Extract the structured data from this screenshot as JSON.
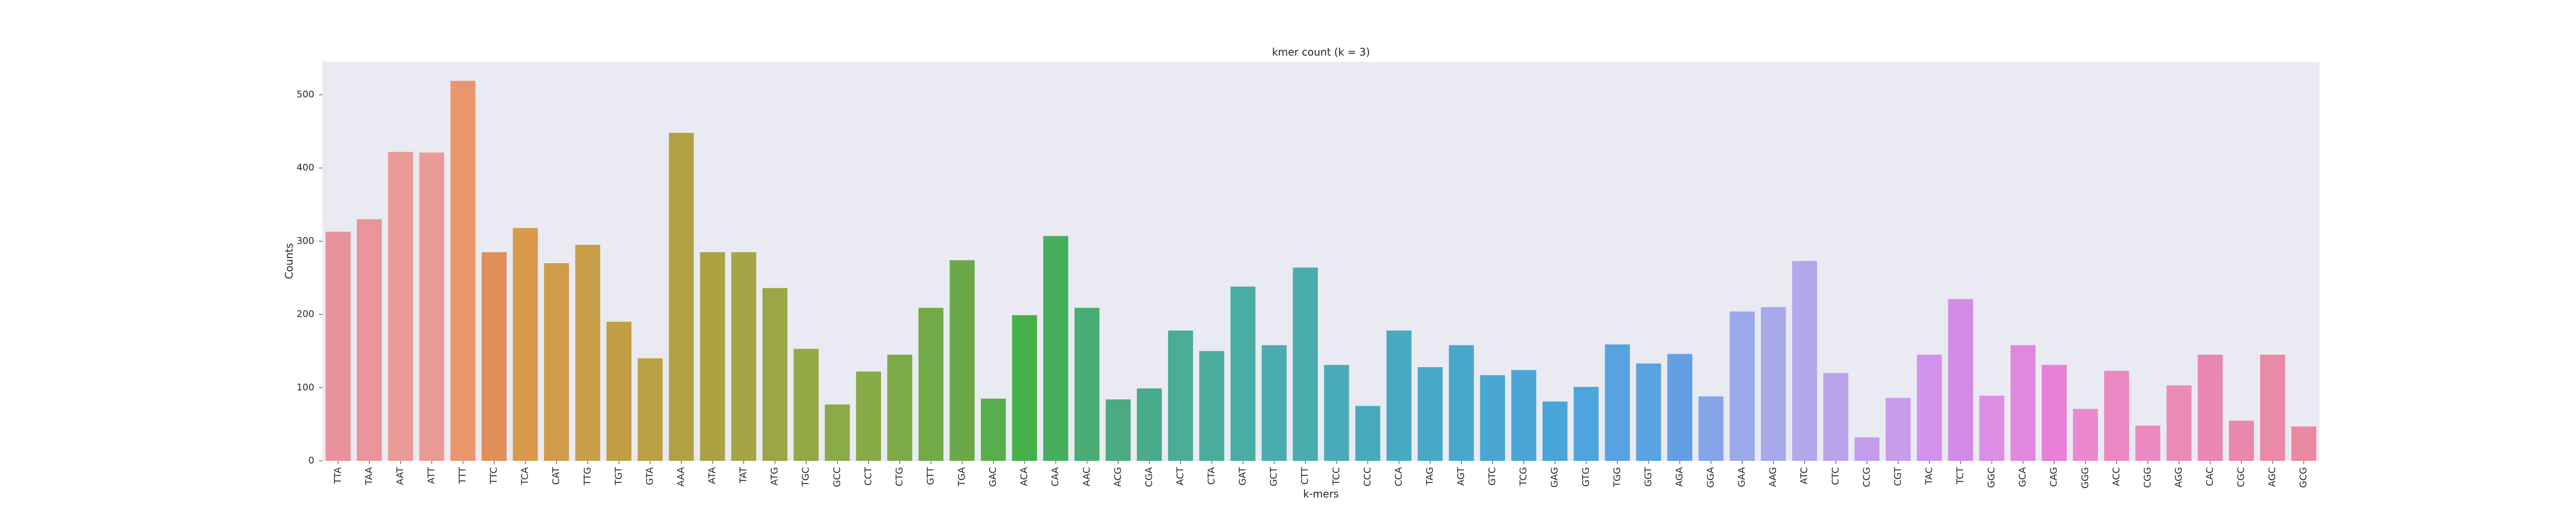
{
  "chart_data": {
    "type": "bar",
    "title": "kmer count (k = 3)",
    "xlabel": "k-mers",
    "ylabel": "Counts",
    "ylim": [
      0,
      545
    ],
    "yticks": [
      0,
      100,
      200,
      300,
      400,
      500
    ],
    "grid": false,
    "background": "#eaeaf2",
    "categories": [
      "TTA",
      "TAA",
      "AAT",
      "ATT",
      "TTT",
      "TTC",
      "TCA",
      "CAT",
      "TTG",
      "TGT",
      "GTA",
      "AAA",
      "ATA",
      "TAT",
      "ATG",
      "TGC",
      "GCC",
      "CCT",
      "CTG",
      "GTT",
      "TGA",
      "GAC",
      "ACA",
      "CAA",
      "AAC",
      "ACG",
      "CGA",
      "ACT",
      "CTA",
      "GAT",
      "GCT",
      "CTT",
      "TCC",
      "CCC",
      "CCA",
      "TAG",
      "AGT",
      "GTC",
      "TCG",
      "GAG",
      "GTG",
      "TGG",
      "GGT",
      "AGA",
      "GGA",
      "GAA",
      "AAG",
      "ATC",
      "CTC",
      "CCG",
      "CGT",
      "TAC",
      "TCT",
      "GGC",
      "GCA",
      "CAG",
      "GGG",
      "ACC",
      "CGG",
      "AGG",
      "CAC",
      "CGC",
      "AGC",
      "GCG"
    ],
    "values": [
      313,
      330,
      422,
      421,
      519,
      285,
      318,
      270,
      295,
      190,
      140,
      448,
      285,
      285,
      236,
      153,
      77,
      122,
      145,
      209,
      274,
      85,
      199,
      307,
      209,
      84,
      99,
      178,
      150,
      238,
      158,
      264,
      131,
      75,
      178,
      128,
      158,
      117,
      124,
      81,
      101,
      159,
      133,
      146,
      88,
      204,
      210,
      273,
      120,
      32,
      86,
      145,
      221,
      89,
      158,
      131,
      71,
      123,
      48,
      103,
      145,
      55,
      145,
      47
    ],
    "colors": [
      "#e8929c",
      "#e9959a",
      "#e99b95",
      "#e99b95",
      "#e9966d",
      "#e08f59",
      "#d99a4e",
      "#d09c4a",
      "#c99e48",
      "#c29e45",
      "#b9a143",
      "#b2a144",
      "#aca244",
      "#a5a545",
      "#9ca646",
      "#94a846",
      "#8aab48",
      "#86ab47",
      "#7daa48",
      "#73aa48",
      "#6ba948",
      "#58ae4d",
      "#45af4a",
      "#47ae5e",
      "#49ad73",
      "#4aab82",
      "#4aab8b",
      "#4aac95",
      "#4aac9c",
      "#4aada5",
      "#4aacaf",
      "#4aacac",
      "#49abb8",
      "#48abbd",
      "#48a9c2",
      "#48a9c6",
      "#48a8ca",
      "#49a7cf",
      "#4aa6d5",
      "#4aa5d9",
      "#4ea4dc",
      "#56a3e0",
      "#5ba2e0",
      "#649fe3",
      "#84a6e9",
      "#9aa9ea",
      "#a6aaea",
      "#b4a8ec",
      "#baa2ea",
      "#c29deb",
      "#c99beb",
      "#d092ea",
      "#d38be5",
      "#da8ee4",
      "#e088e0",
      "#e87fd8",
      "#eb88d0",
      "#eb88c2",
      "#eb8ac0",
      "#eb8cb8",
      "#e987b3",
      "#e988ab",
      "#e98aa6",
      "#e98aa1"
    ]
  }
}
